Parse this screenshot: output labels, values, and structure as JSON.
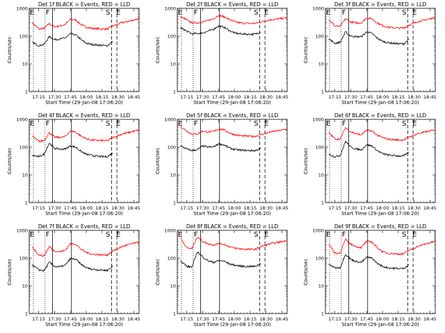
{
  "chart_data": {
    "type": "line",
    "x_unit": "UT time (HH:MM)",
    "xlabel": "Start Time (29-Jan-08 17:06:20)",
    "ylabel": "Counts/sec",
    "xlim": [
      "17:06",
      "18:50"
    ],
    "ylim": [
      1,
      1000
    ],
    "y_scale": "log",
    "x_ticks": [
      "17:15",
      "17:30",
      "17:45",
      "18:00",
      "18:15",
      "18:30",
      "18:45"
    ],
    "y_ticks": [
      "1",
      "10",
      "100",
      "1000"
    ],
    "colors": {
      "Events": "#000000",
      "LLD": "#ff0000"
    },
    "markers": [
      {
        "label": "E",
        "time": "17:06",
        "style": "dotted"
      },
      {
        "label": "",
        "time": "17:10",
        "style": "dotted"
      },
      {
        "label": "F",
        "time": "17:21",
        "style": "dotted"
      },
      {
        "label": "",
        "time": "17:28",
        "style": "solid"
      },
      {
        "label": "",
        "time": "17:46",
        "style": "solid"
      },
      {
        "label": "S",
        "time": "18:24",
        "style": "dashed"
      },
      {
        "label": "E",
        "time": "18:29",
        "style": "dashed"
      }
    ],
    "panels": [
      {
        "title": "Det 1f BLACK = Events, RED = LLD",
        "series": [
          {
            "name": "RED = LLD",
            "x": [
              "17:09",
              "17:15",
              "17:20",
              "17:25",
              "17:30",
              "17:35",
              "17:40",
              "17:45",
              "17:50",
              "17:55",
              "18:00",
              "18:05",
              "18:10",
              "18:15",
              "18:20",
              "18:25",
              "18:28",
              "18:33",
              "18:38",
              "18:45",
              "18:50"
            ],
            "y": [
              300,
              180,
              190,
              280,
              220,
              230,
              260,
              400,
              380,
              260,
              210,
              190,
              185,
              180,
              180,
              230,
              250,
              300,
              330,
              380,
              420
            ]
          },
          {
            "name": "BLACK = Events",
            "x": [
              "17:09",
              "17:15",
              "17:20",
              "17:25",
              "17:30",
              "17:35",
              "17:40",
              "17:45",
              "17:50",
              "17:55",
              "18:00",
              "18:05",
              "18:10",
              "18:15",
              "18:20",
              "18:25"
            ],
            "y": [
              60,
              45,
              50,
              95,
              75,
              78,
              85,
              120,
              110,
              75,
              55,
              50,
              48,
              46,
              45,
              65
            ]
          }
        ]
      },
      {
        "title": "Det 2f BLACK = Events, RED = LLD",
        "series": [
          {
            "name": "RED = LLD",
            "x": [
              "17:09",
              "17:15",
              "17:20",
              "17:25",
              "17:30",
              "17:35",
              "17:40",
              "17:45",
              "17:50",
              "17:55",
              "18:00",
              "18:05",
              "18:10",
              "18:15",
              "18:20",
              "18:25",
              "18:28",
              "18:33",
              "18:38",
              "18:45",
              "18:50"
            ],
            "y": [
              500,
              380,
              300,
              300,
              320,
              360,
              420,
              560,
              500,
              400,
              330,
              300,
              290,
              285,
              290,
              320,
              340,
              380,
              400,
              430,
              460
            ]
          },
          {
            "name": "BLACK = Events",
            "x": [
              "17:09",
              "17:15",
              "17:20",
              "17:25",
              "17:30",
              "17:35",
              "17:40",
              "17:45",
              "17:50",
              "17:55",
              "18:00",
              "18:05",
              "18:10",
              "18:15",
              "18:20",
              "18:25"
            ],
            "y": [
              200,
              150,
              120,
              125,
              130,
              150,
              175,
              230,
              210,
              160,
              130,
              120,
              118,
              116,
              118,
              140
            ]
          }
        ]
      },
      {
        "title": "Det 3f BLACK = Events, RED = LLD",
        "series": [
          {
            "name": "RED = LLD",
            "x": [
              "17:09",
              "17:15",
              "17:20",
              "17:25",
              "17:30",
              "17:35",
              "17:40",
              "17:45",
              "17:50",
              "17:55",
              "18:00",
              "18:05",
              "18:10",
              "18:15",
              "18:20",
              "18:25",
              "18:28",
              "18:33",
              "18:38",
              "18:45",
              "18:50"
            ],
            "y": [
              400,
              230,
              220,
              420,
              320,
              300,
              300,
              450,
              420,
              300,
              240,
              210,
              200,
              195,
              195,
              250,
              270,
              330,
              360,
              420,
              470
            ]
          },
          {
            "name": "BLACK = Events",
            "x": [
              "17:09",
              "17:15",
              "17:20",
              "17:25",
              "17:30",
              "17:35",
              "17:40",
              "17:45",
              "17:50",
              "17:55",
              "18:00",
              "18:05",
              "18:10",
              "18:15",
              "18:20",
              "18:25"
            ],
            "y": [
              80,
              55,
              60,
              140,
              100,
              95,
              95,
              140,
              125,
              85,
              65,
              58,
              55,
              53,
              52,
              75
            ]
          }
        ]
      },
      {
        "title": "Det 4f BLACK = Events, RED = LLD",
        "series": [
          {
            "name": "RED = LLD",
            "x": [
              "17:09",
              "17:15",
              "17:20",
              "17:25",
              "17:30",
              "17:35",
              "17:40",
              "17:45",
              "17:50",
              "17:55",
              "18:00",
              "18:05",
              "18:10",
              "18:15",
              "18:20",
              "18:25",
              "18:28",
              "18:33",
              "18:38",
              "18:45",
              "18:50"
            ],
            "y": [
              250,
              160,
              170,
              330,
              230,
              220,
              240,
              380,
              350,
              250,
              200,
              180,
              175,
              172,
              170,
              220,
              240,
              290,
              320,
              370,
              410
            ]
          },
          {
            "name": "BLACK = Events",
            "x": [
              "17:09",
              "17:15",
              "17:20",
              "17:25",
              "17:30",
              "17:35",
              "17:40",
              "17:45",
              "17:50",
              "17:55",
              "18:00",
              "18:05",
              "18:10",
              "18:15",
              "18:20",
              "18:25"
            ],
            "y": [
              50,
              45,
              55,
              140,
              90,
              85,
              85,
              110,
              100,
              70,
              55,
              50,
              47,
              45,
              45,
              62
            ]
          }
        ]
      },
      {
        "title": "Det 5f BLACK = Events, RED = LLD",
        "series": [
          {
            "name": "RED = LLD",
            "x": [
              "17:09",
              "17:15",
              "17:20",
              "17:25",
              "17:30",
              "17:35",
              "17:40",
              "17:45",
              "17:50",
              "17:55",
              "18:00",
              "18:05",
              "18:10",
              "18:15",
              "18:20",
              "18:25",
              "18:28",
              "18:33",
              "18:38",
              "18:45",
              "18:50"
            ],
            "y": [
              550,
              380,
              290,
              300,
              380,
              350,
              360,
              450,
              420,
              330,
              280,
              260,
              250,
              245,
              245,
              280,
              300,
              340,
              370,
              410,
              450
            ]
          },
          {
            "name": "BLACK = Events",
            "x": [
              "17:09",
              "17:15",
              "17:20",
              "17:25",
              "17:30",
              "17:35",
              "17:40",
              "17:45",
              "17:50",
              "17:55",
              "18:00",
              "18:05",
              "18:10",
              "18:15",
              "18:20",
              "18:25"
            ],
            "y": [
              110,
              85,
              75,
              80,
              110,
              100,
              100,
              130,
              120,
              95,
              82,
              78,
              76,
              75,
              75,
              90
            ]
          }
        ]
      },
      {
        "title": "Det 6f BLACK = Events, RED = LLD",
        "series": [
          {
            "name": "RED = LLD",
            "x": [
              "17:09",
              "17:15",
              "17:20",
              "17:25",
              "17:30",
              "17:35",
              "17:40",
              "17:45",
              "17:50",
              "17:55",
              "18:00",
              "18:05",
              "18:10",
              "18:15",
              "18:20",
              "18:25",
              "18:28",
              "18:33",
              "18:38",
              "18:45",
              "18:50"
            ],
            "y": [
              330,
              200,
              190,
              500,
              360,
              300,
              280,
              400,
              380,
              270,
              220,
              195,
              185,
              180,
              180,
              230,
              250,
              300,
              330,
              380,
              420
            ]
          },
          {
            "name": "BLACK = Events",
            "x": [
              "17:09",
              "17:15",
              "17:20",
              "17:25",
              "17:30",
              "17:35",
              "17:40",
              "17:45",
              "17:50",
              "17:55",
              "18:00",
              "18:05",
              "18:10",
              "18:15",
              "18:20",
              "18:25"
            ],
            "y": [
              55,
              45,
              50,
              160,
              100,
              85,
              80,
              120,
              110,
              75,
              58,
              52,
              50,
              48,
              48,
              65
            ]
          }
        ]
      },
      {
        "title": "Det 7f BLACK = Events, RED = LLD",
        "series": [
          {
            "name": "RED = LLD",
            "x": [
              "17:09",
              "17:15",
              "17:20",
              "17:25",
              "17:30",
              "17:35",
              "17:40",
              "17:45",
              "17:50",
              "17:55",
              "18:00",
              "18:05",
              "18:10",
              "18:15",
              "18:20",
              "18:25",
              "18:28",
              "18:33",
              "18:38",
              "18:45",
              "18:50"
            ],
            "y": [
              250,
              130,
              120,
              260,
              180,
              170,
              190,
              330,
              320,
              210,
              160,
              140,
              135,
              130,
              130,
              180,
              200,
              250,
              290,
              340,
              380
            ]
          },
          {
            "name": "BLACK = Events",
            "x": [
              "17:09",
              "17:15",
              "17:20",
              "17:25",
              "17:30",
              "17:35",
              "17:40",
              "17:45",
              "17:50",
              "17:55",
              "18:00",
              "18:05",
              "18:10",
              "18:15",
              "18:20",
              "18:25"
            ],
            "y": [
              55,
              38,
              35,
              70,
              50,
              48,
              55,
              95,
              90,
              60,
              45,
              40,
              38,
              37,
              36,
              50
            ]
          }
        ]
      },
      {
        "title": "Det 8f BLACK = Events, RED = LLD",
        "series": [
          {
            "name": "RED = LLD",
            "x": [
              "17:09",
              "17:15",
              "17:20",
              "17:25",
              "17:30",
              "17:35",
              "17:40",
              "17:45",
              "17:50",
              "17:55",
              "18:00",
              "18:05",
              "18:10",
              "18:15",
              "18:20",
              "18:25",
              "18:28",
              "18:33",
              "18:38",
              "18:45",
              "18:50"
            ],
            "y": [
              550,
              230,
              220,
              600,
              400,
              330,
              300,
              330,
              320,
              260,
              230,
              215,
              210,
              205,
              205,
              260,
              280,
              320,
              350,
              390,
              430
            ]
          },
          {
            "name": "BLACK = Events",
            "x": [
              "17:09",
              "17:15",
              "17:20",
              "17:25",
              "17:30",
              "17:35",
              "17:40",
              "17:45",
              "17:50",
              "17:55",
              "18:00",
              "18:05",
              "18:10",
              "18:15",
              "18:20",
              "18:25"
            ],
            "y": [
              80,
              50,
              48,
              170,
              110,
              80,
              70,
              80,
              78,
              62,
              56,
              52,
              50,
              50,
              50,
              65
            ]
          }
        ]
      },
      {
        "title": "Det 9f BLACK = Events, RED = LLD",
        "series": [
          {
            "name": "RED = LLD",
            "x": [
              "17:09",
              "17:15",
              "17:20",
              "17:25",
              "17:30",
              "17:35",
              "17:40",
              "17:45",
              "17:50",
              "17:55",
              "18:00",
              "18:05",
              "18:10",
              "18:15",
              "18:20",
              "18:25",
              "18:28",
              "18:33",
              "18:38",
              "18:45",
              "18:50"
            ],
            "y": [
              330,
              150,
              150,
              470,
              320,
              260,
              240,
              400,
              380,
              240,
              170,
              150,
              145,
              140,
              140,
              190,
              210,
              260,
              300,
              360,
              400
            ]
          },
          {
            "name": "BLACK = Events",
            "x": [
              "17:09",
              "17:15",
              "17:20",
              "17:25",
              "17:30",
              "17:35",
              "17:40",
              "17:45",
              "17:50",
              "17:55",
              "18:00",
              "18:05",
              "18:10",
              "18:15",
              "18:20",
              "18:25"
            ],
            "y": [
              60,
              45,
              45,
              140,
              90,
              75,
              70,
              105,
              100,
              65,
              50,
              45,
              43,
              42,
              42,
              58
            ]
          }
        ]
      }
    ]
  }
}
